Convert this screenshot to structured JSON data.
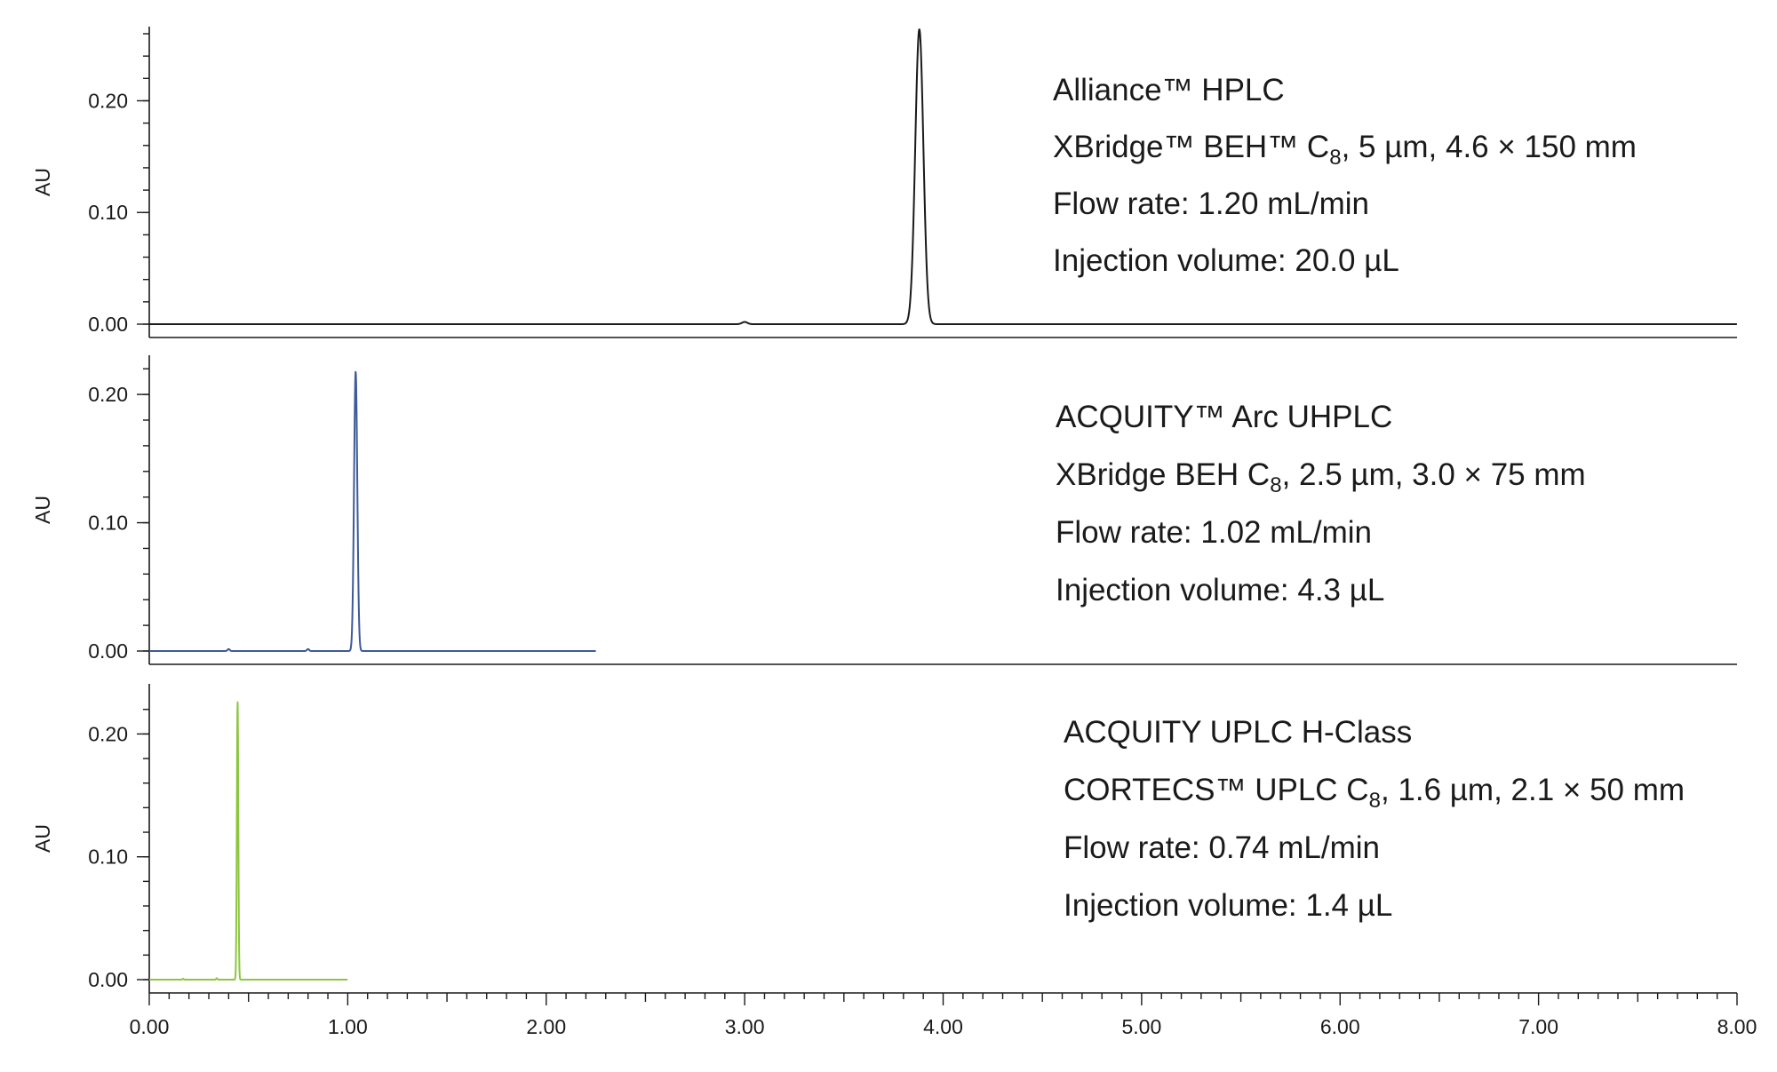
{
  "chart_data": {
    "type": "line",
    "x_ticks": [
      "0.00",
      "1.00",
      "2.00",
      "3.00",
      "4.00",
      "5.00",
      "6.00",
      "7.00",
      "8.00"
    ],
    "xlim": [
      0,
      8
    ],
    "panels": [
      {
        "ylabel": "AU",
        "ylim": [
          -0.005,
          0.26
        ],
        "y_ticks": [
          "0.00",
          "0.10",
          "0.20"
        ],
        "series": [
          {
            "color": "#1a1a1a",
            "x_end": 8.0,
            "baseline": 0.0,
            "peaks": [
              {
                "rt": 3.0,
                "height": 0.002,
                "width": 0.03
              },
              {
                "rt": 3.88,
                "height": 0.264,
                "width": 0.045
              }
            ]
          }
        ],
        "annotation": [
          {
            "segments": [
              {
                "text": "Alliance™ HPLC"
              }
            ]
          },
          {
            "segments": [
              {
                "text": "XBridge™ BEH™ C"
              },
              {
                "text": "8",
                "sub": true
              },
              {
                "text": ",  5 µm, 4.6 × 150 mm"
              }
            ]
          },
          {
            "segments": [
              {
                "text": "Flow rate: 1.20 mL/min"
              }
            ]
          },
          {
            "segments": [
              {
                "text": "Injection volume: 20.0 µL"
              }
            ]
          }
        ]
      },
      {
        "ylabel": "AU",
        "ylim": [
          -0.01,
          0.225
        ],
        "y_ticks": [
          "0.00",
          "0.10",
          "0.20"
        ],
        "series": [
          {
            "color": "#3d5a99",
            "x_end": 2.25,
            "baseline": 0.0,
            "peaks": [
              {
                "rt": 0.4,
                "height": 0.0015,
                "width": 0.012
              },
              {
                "rt": 0.8,
                "height": 0.0015,
                "width": 0.012
              },
              {
                "rt": 1.04,
                "height": 0.218,
                "width": 0.018
              }
            ]
          }
        ],
        "annotation": [
          {
            "segments": [
              {
                "text": "ACQUITY™ Arc UHPLC"
              }
            ]
          },
          {
            "segments": [
              {
                "text": "XBridge BEH C"
              },
              {
                "text": "8",
                "sub": true
              },
              {
                "text": ", 2.5 µm, 3.0 × 75 mm"
              }
            ]
          },
          {
            "segments": [
              {
                "text": "Flow rate: 1.02 mL/min"
              }
            ]
          },
          {
            "segments": [
              {
                "text": "Injection volume: 4.3 µL"
              }
            ]
          }
        ]
      },
      {
        "ylabel": "AU",
        "ylim": [
          -0.005,
          0.235
        ],
        "y_ticks": [
          "0.00",
          "0.10",
          "0.20"
        ],
        "series": [
          {
            "color": "#8cc63f",
            "x_end": 1.0,
            "baseline": 0.0,
            "peaks": [
              {
                "rt": 0.17,
                "height": 0.0008,
                "width": 0.006
              },
              {
                "rt": 0.34,
                "height": 0.0012,
                "width": 0.006
              },
              {
                "rt": 0.445,
                "height": 0.228,
                "width": 0.008
              }
            ]
          }
        ],
        "annotation": [
          {
            "segments": [
              {
                "text": "ACQUITY UPLC H-Class"
              }
            ]
          },
          {
            "segments": [
              {
                "text": "CORTECS™ UPLC C"
              },
              {
                "text": "8",
                "sub": true
              },
              {
                "text": ", 1.6 µm, 2.1 × 50 mm"
              }
            ]
          },
          {
            "segments": [
              {
                "text": "Flow rate: 0.74 mL/min"
              }
            ]
          },
          {
            "segments": [
              {
                "text": "Injection volume: 1.4 µL"
              }
            ]
          }
        ]
      }
    ]
  }
}
